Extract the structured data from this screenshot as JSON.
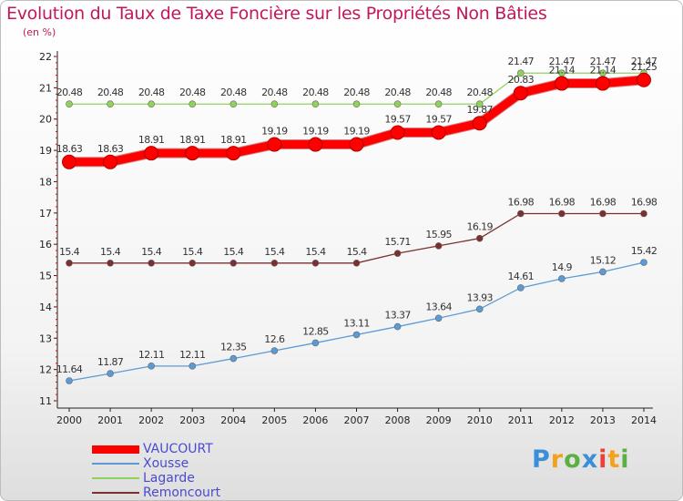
{
  "title": "Evolution du Taux de Taxe Foncière sur les Propriétés Non Bâties",
  "subtitle": "(en %)",
  "logo_text": "Proxiti",
  "chart_data": {
    "type": "line",
    "title": "Evolution du Taux de Taxe Foncière sur les Propriétés Non Bâties",
    "ylabel": "(en %)",
    "xlabel": "",
    "ylim": [
      11,
      22
    ],
    "yticks": [
      11,
      12,
      13,
      14,
      15,
      16,
      17,
      18,
      19,
      20,
      21,
      22
    ],
    "categories": [
      "2000",
      "2001",
      "2002",
      "2003",
      "2004",
      "2005",
      "2006",
      "2007",
      "2008",
      "2009",
      "2010",
      "2011",
      "2012",
      "2013",
      "2014"
    ],
    "series": [
      {
        "name": "VAUCOURT",
        "color": "#ff0000",
        "bold": true,
        "values": [
          18.63,
          18.63,
          18.91,
          18.91,
          18.91,
          19.19,
          19.19,
          19.19,
          19.57,
          19.57,
          19.87,
          20.83,
          21.14,
          21.14,
          21.25
        ],
        "labels": [
          "18.63",
          "18.63",
          "18.91",
          "18.91",
          "18.91",
          "19.19",
          "19.19",
          "19.19",
          "19.57",
          "19.57",
          "19.87",
          "20.83",
          "21.14",
          "21.14",
          "21.25"
        ]
      },
      {
        "name": "Xousse",
        "color": "#5b9bd5",
        "values": [
          11.64,
          11.87,
          12.11,
          12.11,
          12.35,
          12.6,
          12.85,
          13.11,
          13.37,
          13.64,
          13.93,
          14.61,
          14.9,
          15.12,
          15.42
        ],
        "labels": [
          "11.64",
          "11.87",
          "12.11",
          "12.11",
          "12.35",
          "12.6",
          "12.85",
          "13.11",
          "13.37",
          "13.64",
          "13.93",
          "14.61",
          "14.9",
          "15.12",
          "15.42"
        ]
      },
      {
        "name": "Lagarde",
        "color": "#8fd45a",
        "values": [
          20.48,
          20.48,
          20.48,
          20.48,
          20.48,
          20.48,
          20.48,
          20.48,
          20.48,
          20.48,
          20.48,
          21.47,
          21.47,
          21.47,
          21.47
        ],
        "labels": [
          "20.48",
          "20.48",
          "20.48",
          "20.48",
          "20.48",
          "20.48",
          "20.48",
          "20.48",
          "20.48",
          "20.48",
          "20.48",
          "21.47",
          "21.47",
          "21.47",
          "21.47"
        ]
      },
      {
        "name": "Remoncourt",
        "color": "#7b2f2f",
        "values": [
          15.4,
          15.4,
          15.4,
          15.4,
          15.4,
          15.4,
          15.4,
          15.4,
          15.71,
          15.95,
          16.19,
          16.98,
          16.98,
          16.98,
          16.98
        ],
        "labels": [
          "15.4",
          "15.4",
          "15.4",
          "15.4",
          "15.4",
          "15.4",
          "15.4",
          "15.4",
          "15.71",
          "15.95",
          "16.19",
          "16.98",
          "16.98",
          "16.98",
          "16.98"
        ]
      }
    ],
    "legend_position": "bottom-left",
    "grid": false
  }
}
